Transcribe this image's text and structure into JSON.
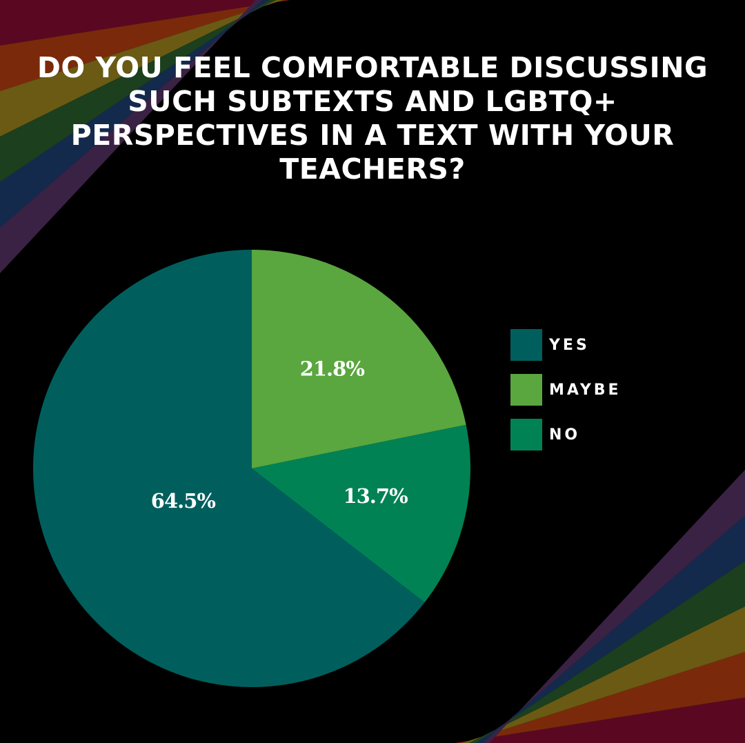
{
  "title_lines": [
    "DO YOU FEEL COMFORTABLE DISCUSSING",
    "SUCH SUBTEXTS AND LGBTQ+",
    "PERSPECTIVES IN A TEXT WITH YOUR",
    "TEACHERS?"
  ],
  "chart_data": {
    "type": "pie",
    "title": "DO YOU FEEL COMFORTABLE DISCUSSING SUCH SUBTEXTS AND LGBTQ+ PERSPECTIVES IN A TEXT WITH YOUR TEACHERS?",
    "slices": [
      {
        "label": "YES",
        "value": 64.5,
        "display": "64.5%",
        "color": "#005f5d"
      },
      {
        "label": "MAYBE",
        "value": 21.8,
        "display": "21.8%",
        "color": "#5aa63f"
      },
      {
        "label": "NO",
        "value": 13.7,
        "display": "13.7%",
        "color": "#008255"
      }
    ],
    "slice_order_clockwise_from_top": [
      "MAYBE",
      "NO",
      "YES"
    ],
    "legend_placement": "right"
  },
  "legend": [
    {
      "label": "YES",
      "color": "#005f5d"
    },
    {
      "label": "MAYBE",
      "color": "#5aa63f"
    },
    {
      "label": "NO",
      "color": "#008255"
    }
  ],
  "background": {
    "color": "#000000",
    "rainbow_colors": [
      "#5a0822",
      "#7a2a0a",
      "#6a5a14",
      "#1c3f1e",
      "#132a4d",
      "#3a2244"
    ]
  }
}
